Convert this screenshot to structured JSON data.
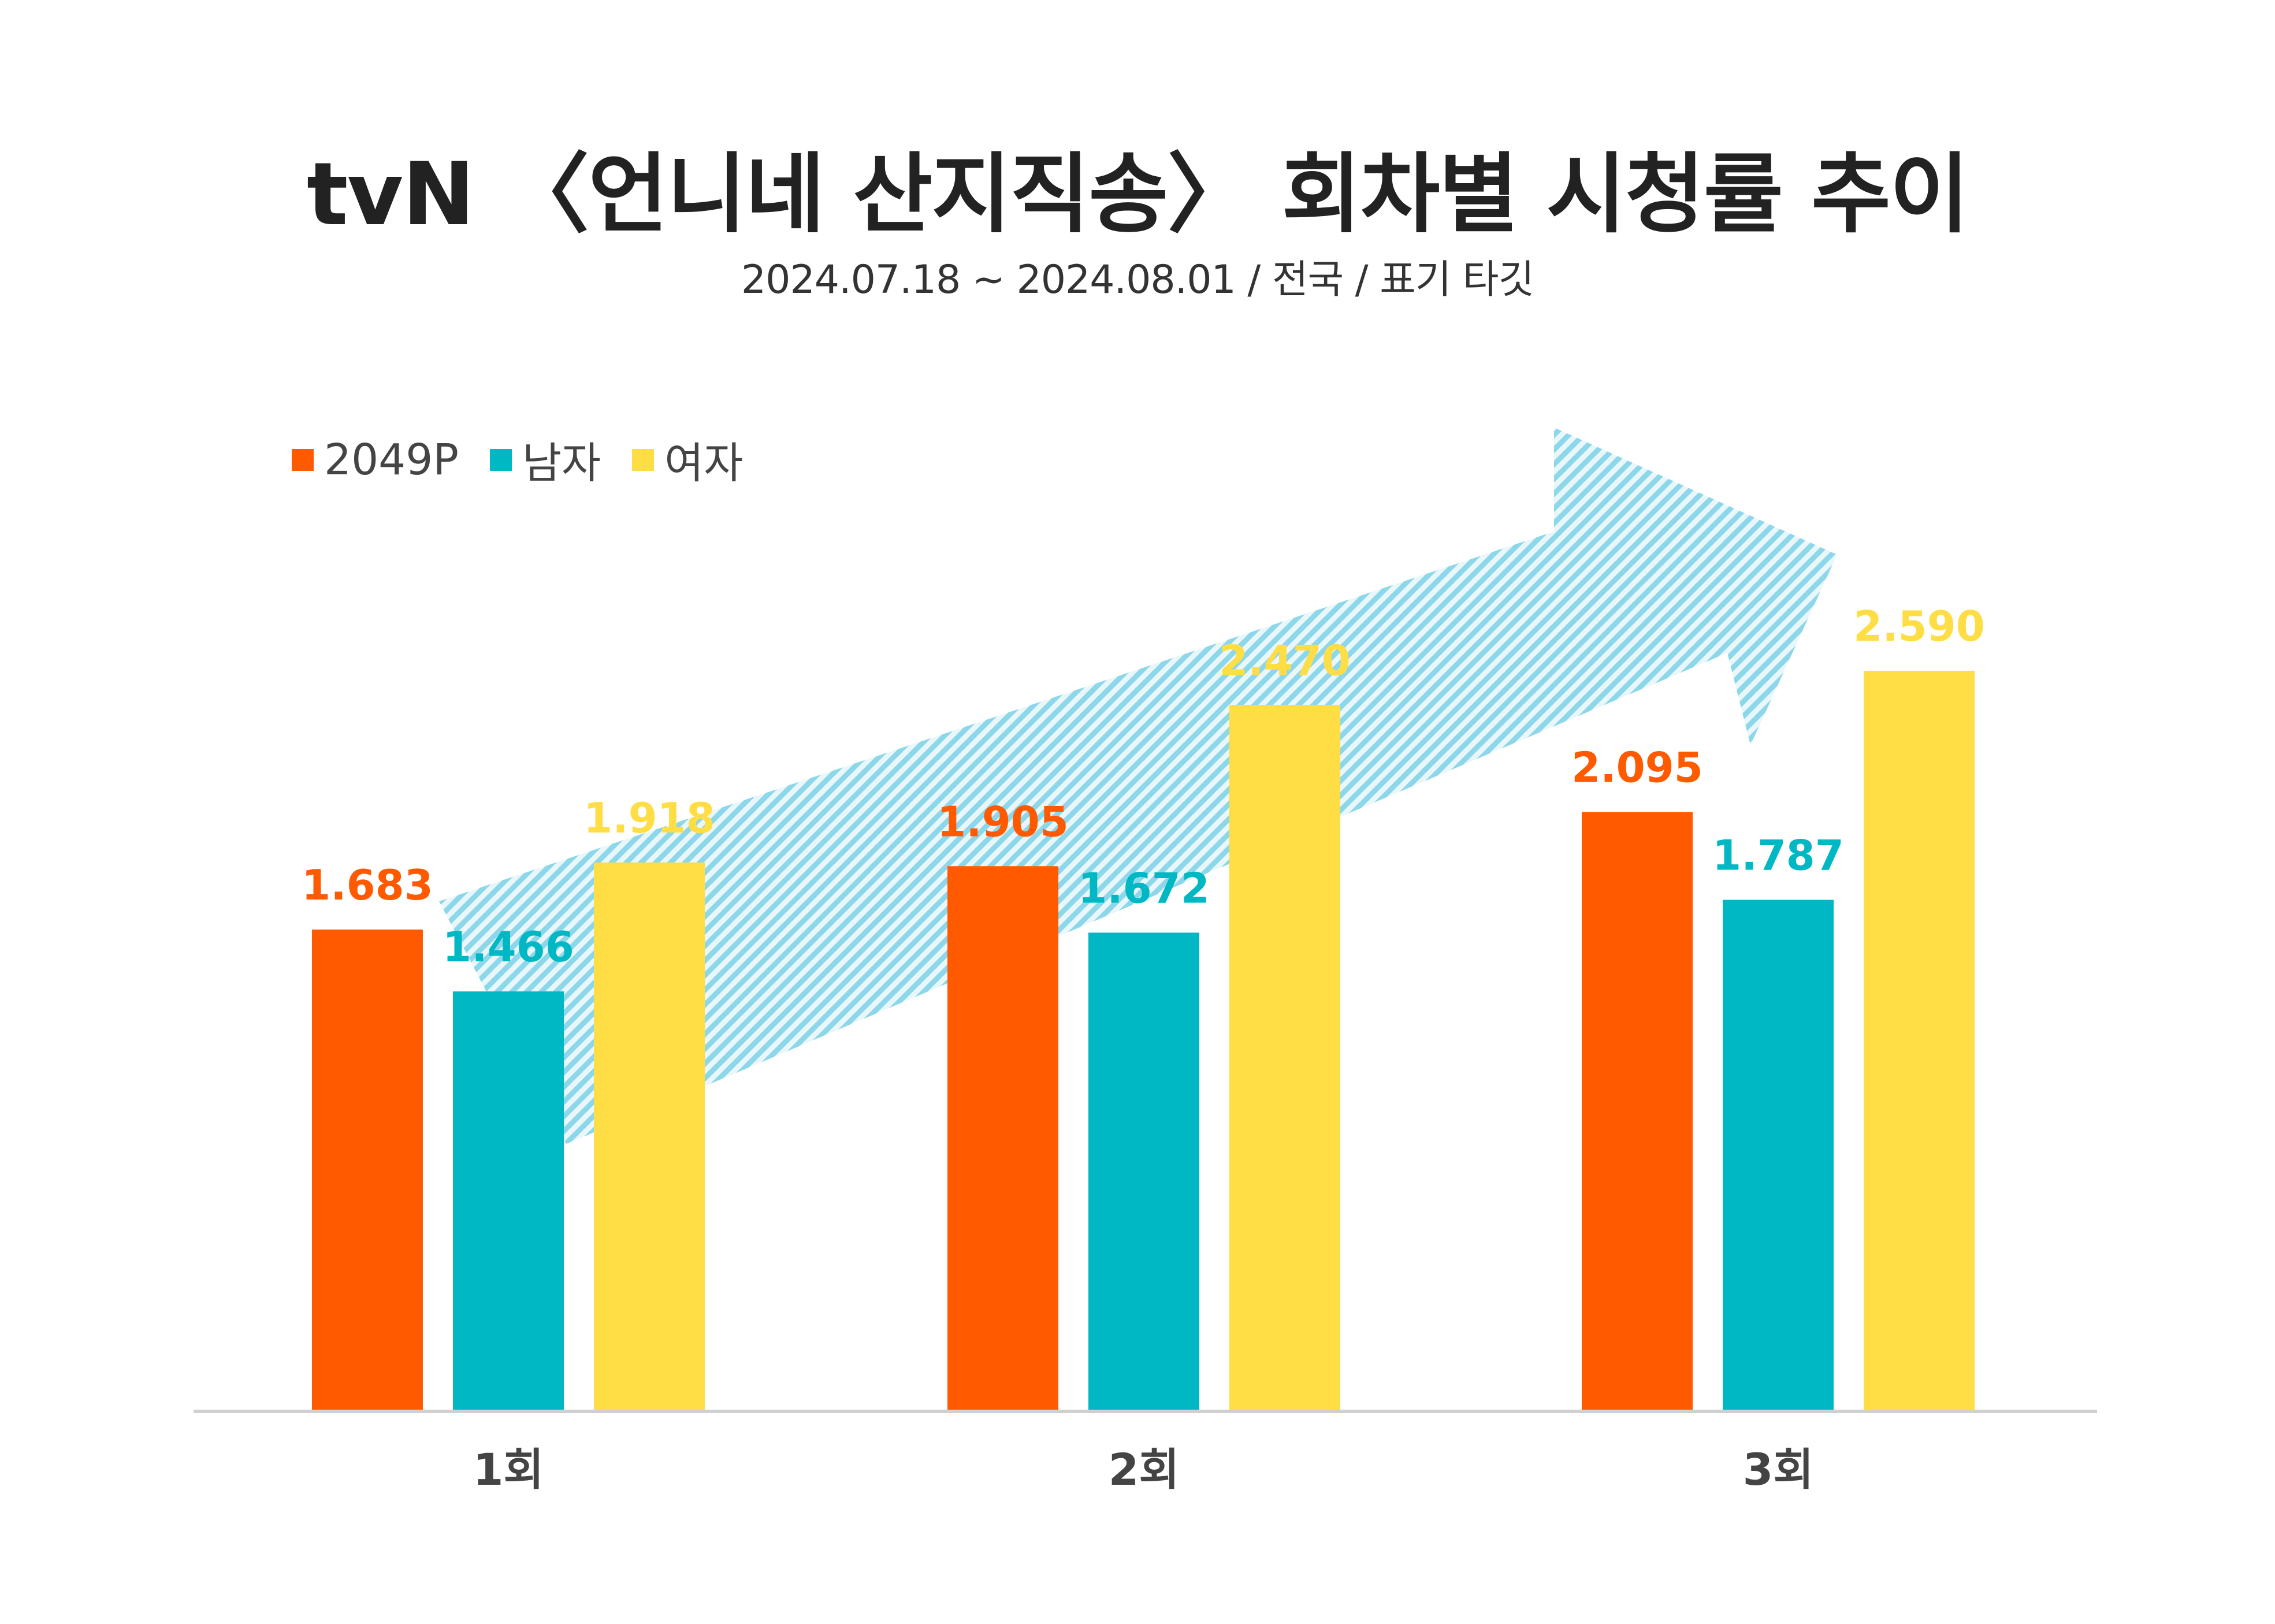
{
  "title": "tvN 〈언니네 산지직송〉 회차별 시청률 추이",
  "subtitle": "2024.07.18 ~ 2024.08.01 / 전국 / 표기 타깃",
  "colors": {
    "series_2049p": "#FF5A00",
    "series_male": "#00B8C4",
    "series_female": "#FFDD44",
    "axis": "#D0D0D0",
    "arrow": "#7FD3E6"
  },
  "legend": [
    {
      "name": "2049P",
      "color": "#FF5A00"
    },
    {
      "name": "남자",
      "color": "#00B8C4"
    },
    {
      "name": "여자",
      "color": "#FFDD44"
    }
  ],
  "chart_data": {
    "type": "bar",
    "categories": [
      "1회",
      "2회",
      "3회"
    ],
    "series": [
      {
        "name": "2049P",
        "values": [
          1.683,
          1.905,
          2.095
        ],
        "labels": [
          "1.683",
          "1.905",
          "2.095"
        ]
      },
      {
        "name": "남자",
        "values": [
          1.466,
          1.672,
          1.787
        ],
        "labels": [
          "1.466",
          "1.672",
          "1.787"
        ]
      },
      {
        "name": "여자",
        "values": [
          1.918,
          2.47,
          2.59
        ],
        "labels": [
          "1.918",
          "2.470",
          "2.590"
        ]
      }
    ],
    "ylim": [
      0,
      2.6
    ],
    "legend_position": "top-left",
    "grid": false,
    "annotation": "upward trend arrow"
  }
}
